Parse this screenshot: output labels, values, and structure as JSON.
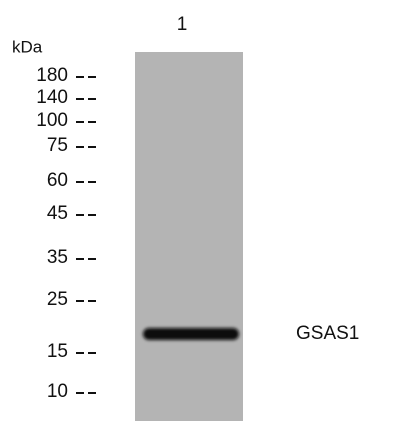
{
  "lanes": [
    "1"
  ],
  "unit": "kDa",
  "markers": [
    "180",
    "140",
    "100",
    "75",
    "60",
    "45",
    "35",
    "25",
    "15",
    "10"
  ],
  "band_label": "GSAS1"
}
